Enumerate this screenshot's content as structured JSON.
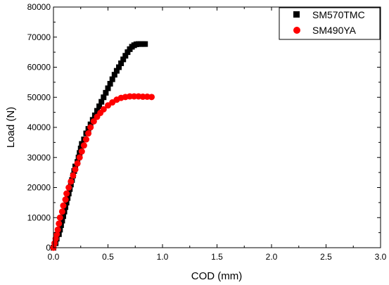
{
  "chart_data": {
    "type": "scatter",
    "xlabel": "COD (mm)",
    "ylabel": "Load (N)",
    "xlim": [
      0.0,
      3.0
    ],
    "ylim": [
      0,
      80000
    ],
    "x_ticks": [
      "0.0",
      "0.5",
      "1.0",
      "1.5",
      "2.0",
      "2.5",
      "3.0"
    ],
    "y_ticks": [
      "0",
      "10000",
      "20000",
      "30000",
      "40000",
      "50000",
      "60000",
      "70000",
      "80000"
    ],
    "grid": false,
    "legend_position": "top-right",
    "series": [
      {
        "name": "SM570TMC",
        "color": "#000000",
        "marker": "square",
        "points": [
          [
            0.0,
            0
          ],
          [
            0.02,
            1500
          ],
          [
            0.03,
            3000
          ],
          [
            0.05,
            4500
          ],
          [
            0.06,
            6000
          ],
          [
            0.07,
            7500
          ],
          [
            0.08,
            9000
          ],
          [
            0.09,
            10500
          ],
          [
            0.1,
            12000
          ],
          [
            0.11,
            13500
          ],
          [
            0.12,
            15000
          ],
          [
            0.13,
            16500
          ],
          [
            0.14,
            18000
          ],
          [
            0.15,
            19500
          ],
          [
            0.16,
            21000
          ],
          [
            0.17,
            22500
          ],
          [
            0.18,
            24000
          ],
          [
            0.19,
            25500
          ],
          [
            0.2,
            27000
          ],
          [
            0.22,
            28500
          ],
          [
            0.23,
            30000
          ],
          [
            0.24,
            31500
          ],
          [
            0.25,
            33000
          ],
          [
            0.26,
            34500
          ],
          [
            0.28,
            36000
          ],
          [
            0.3,
            38000
          ],
          [
            0.32,
            39500
          ],
          [
            0.34,
            41000
          ],
          [
            0.36,
            42500
          ],
          [
            0.38,
            44000
          ],
          [
            0.4,
            45500
          ],
          [
            0.42,
            47000
          ],
          [
            0.44,
            48500
          ],
          [
            0.46,
            50000
          ],
          [
            0.48,
            51500
          ],
          [
            0.5,
            53000
          ],
          [
            0.52,
            54500
          ],
          [
            0.54,
            56000
          ],
          [
            0.56,
            57500
          ],
          [
            0.58,
            58800
          ],
          [
            0.6,
            60000
          ],
          [
            0.62,
            61300
          ],
          [
            0.64,
            62600
          ],
          [
            0.66,
            63800
          ],
          [
            0.68,
            65000
          ],
          [
            0.7,
            66000
          ],
          [
            0.72,
            66800
          ],
          [
            0.74,
            67300
          ],
          [
            0.76,
            67600
          ],
          [
            0.78,
            67700
          ],
          [
            0.8,
            67700
          ],
          [
            0.82,
            67700
          ],
          [
            0.84,
            67700
          ]
        ]
      },
      {
        "name": "SM490YA",
        "color": "#ff0000",
        "marker": "circle",
        "points": [
          [
            0.0,
            0
          ],
          [
            0.01,
            1500
          ],
          [
            0.02,
            3000
          ],
          [
            0.03,
            4500
          ],
          [
            0.04,
            6000
          ],
          [
            0.05,
            8000
          ],
          [
            0.06,
            10000
          ],
          [
            0.08,
            12000
          ],
          [
            0.09,
            14000
          ],
          [
            0.11,
            16000
          ],
          [
            0.12,
            18000
          ],
          [
            0.14,
            20000
          ],
          [
            0.16,
            22000
          ],
          [
            0.18,
            24000
          ],
          [
            0.2,
            26000
          ],
          [
            0.22,
            28000
          ],
          [
            0.24,
            30000
          ],
          [
            0.26,
            32000
          ],
          [
            0.28,
            34000
          ],
          [
            0.3,
            36000
          ],
          [
            0.32,
            38000
          ],
          [
            0.34,
            40000
          ],
          [
            0.37,
            42000
          ],
          [
            0.4,
            43500
          ],
          [
            0.43,
            44800
          ],
          [
            0.46,
            46000
          ],
          [
            0.5,
            47300
          ],
          [
            0.54,
            48300
          ],
          [
            0.58,
            49200
          ],
          [
            0.62,
            49800
          ],
          [
            0.66,
            50100
          ],
          [
            0.7,
            50300
          ],
          [
            0.74,
            50300
          ],
          [
            0.78,
            50300
          ],
          [
            0.82,
            50200
          ],
          [
            0.86,
            50200
          ],
          [
            0.9,
            50100
          ]
        ]
      }
    ]
  }
}
